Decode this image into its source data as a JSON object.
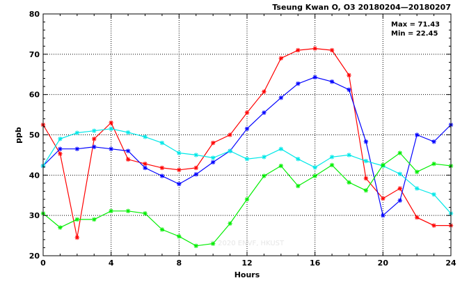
{
  "chart_data": {
    "type": "line",
    "title": "Tseung Kwan O, O3 20180204—20180207",
    "xlabel": "Hours",
    "ylabel": "ppb",
    "xlim": [
      0,
      24
    ],
    "ylim": [
      20,
      80
    ],
    "xticks": [
      0,
      4,
      8,
      12,
      16,
      20,
      24
    ],
    "yticks": [
      20,
      30,
      40,
      50,
      60,
      70,
      80
    ],
    "grid": true,
    "x": [
      0,
      1,
      2,
      3,
      4,
      5,
      6,
      7,
      8,
      9,
      10,
      11,
      12,
      13,
      14,
      15,
      16,
      17,
      18,
      19,
      20,
      21,
      22,
      23,
      24
    ],
    "stats": {
      "max": "Max = 71.43",
      "min": "Min = 22.45"
    },
    "watermark": "© 2020  ENVF, HKUST",
    "series": [
      {
        "color": "#ff0000",
        "values": [
          52.5,
          45.3,
          24.5,
          49.0,
          53.0,
          43.9,
          42.8,
          41.8,
          41.3,
          41.8,
          48.0,
          50.0,
          55.5,
          60.7,
          69.0,
          71.0,
          71.43,
          71.0,
          64.8,
          39.2,
          34.2,
          36.7,
          29.5,
          27.5,
          27.5
        ]
      },
      {
        "color": "#0000ff",
        "values": [
          42.3,
          46.5,
          46.5,
          47.0,
          46.5,
          46.0,
          41.8,
          39.8,
          37.8,
          40.2,
          43.2,
          46.0,
          51.5,
          55.5,
          59.2,
          62.7,
          64.3,
          63.2,
          61.2,
          48.3,
          30.0,
          33.7,
          50.0,
          48.3,
          52.5
        ]
      },
      {
        "color": "#00e8e8",
        "values": [
          42.3,
          49.0,
          50.5,
          51.0,
          51.5,
          50.6,
          49.5,
          48.0,
          45.5,
          45.0,
          44.3,
          46.0,
          44.0,
          44.5,
          46.5,
          44.0,
          41.9,
          44.5,
          45.0,
          43.5,
          42.3,
          40.3,
          36.7,
          35.2,
          30.5
        ]
      },
      {
        "color": "#00ee00",
        "values": [
          30.5,
          27.0,
          29.0,
          29.0,
          31.1,
          31.1,
          30.5,
          26.5,
          24.8,
          22.45,
          23.0,
          28.0,
          34.0,
          39.8,
          42.3,
          37.3,
          39.8,
          42.5,
          38.2,
          36.2,
          42.5,
          45.5,
          40.8,
          42.8,
          42.3
        ]
      }
    ]
  }
}
